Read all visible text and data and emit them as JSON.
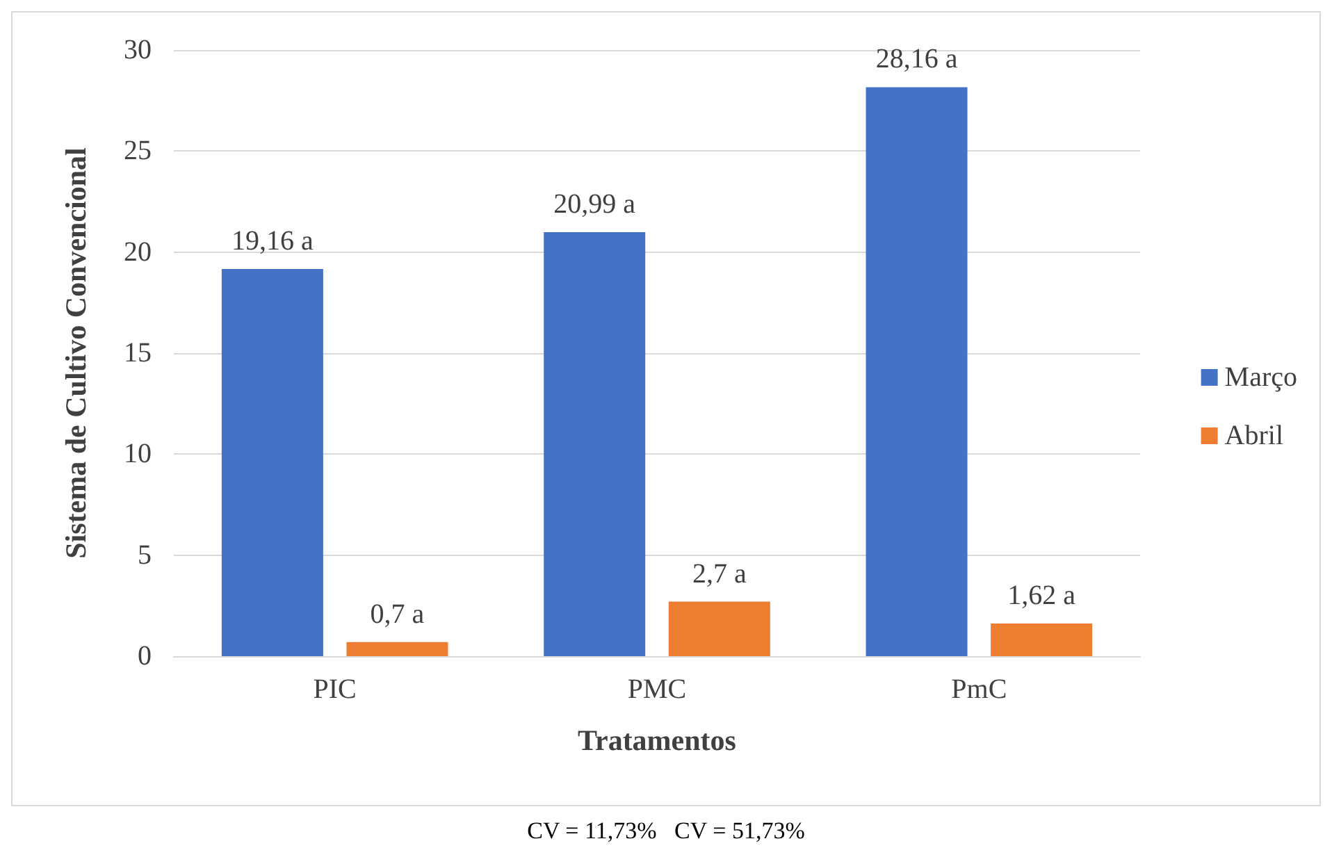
{
  "chart_data": {
    "type": "bar",
    "xlabel": "Tratamentos",
    "ylabel": "Sistema de Cultivo Convencional",
    "categories": [
      "PIC",
      "PMC",
      "PmC"
    ],
    "series": [
      {
        "name": "Março",
        "color": "#4472c4",
        "values": [
          19.16,
          20.99,
          28.16
        ],
        "value_labels": [
          "19,16 a",
          "20,99 a",
          "28,16 a"
        ]
      },
      {
        "name": "Abril",
        "color": "#ed7d31",
        "values": [
          0.7,
          2.7,
          1.62
        ],
        "value_labels": [
          "0,7 a",
          "2,7 a",
          "1,62 a"
        ]
      }
    ],
    "ylim": [
      0,
      30
    ],
    "yticks": [
      0,
      5,
      10,
      15,
      20,
      25,
      30
    ],
    "grid": "y",
    "legend": "right",
    "annotations": [
      "CV = 11,73%   CV = 51,73%"
    ]
  }
}
